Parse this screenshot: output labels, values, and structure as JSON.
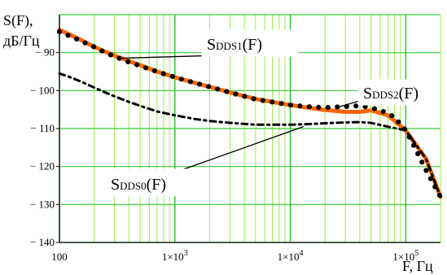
{
  "chart_data": {
    "type": "line",
    "ylabel_line1": "S(F),",
    "ylabel_line2": "дБ/Гц",
    "xlabel": "F, Гц",
    "x_scale": "log",
    "xlim": [
      100,
      200000
    ],
    "ylim": [
      -140,
      -80
    ],
    "yticks": [
      {
        "value": -90,
        "label": "− 90"
      },
      {
        "value": -100,
        "label": "− 100"
      },
      {
        "value": -110,
        "label": "− 110"
      },
      {
        "value": -120,
        "label": "− 120"
      },
      {
        "value": -130,
        "label": "− 130"
      },
      {
        "value": -140,
        "label": "− 140"
      }
    ],
    "xticks": [
      {
        "value": 100,
        "label": "100"
      },
      {
        "value": 1000,
        "label": "1×10",
        "exp": "3"
      },
      {
        "value": 10000,
        "label": "1×10",
        "exp": "4"
      },
      {
        "value": 100000,
        "label": "1×10",
        "exp": "5"
      }
    ],
    "grid": true,
    "colors": {
      "major_grid": "#33cc33",
      "minor_grid": "#99ee44",
      "dds1": "#ff6600",
      "dds2": "#000000",
      "dds0": "#000000"
    },
    "series": [
      {
        "name": "DDS1",
        "style": "solid-thick",
        "x": [
          100,
          150,
          200,
          300,
          500,
          700,
          1000,
          1500,
          2000,
          3000,
          5000,
          7000,
          10000,
          15000,
          20000,
          30000,
          40000,
          50000,
          70000,
          100000,
          150000,
          200000
        ],
        "y": [
          -84,
          -86.5,
          -88.5,
          -90.8,
          -93.3,
          -95,
          -96.5,
          -98,
          -99,
          -100.5,
          -102.2,
          -103,
          -103.8,
          -104.6,
          -105.1,
          -105.6,
          -105.6,
          -105.2,
          -106.5,
          -110.5,
          -118,
          -128
        ]
      },
      {
        "name": "DDS2",
        "style": "dots",
        "x": [
          100,
          120,
          150,
          200,
          250,
          300,
          400,
          500,
          700,
          1000,
          1500,
          2000,
          3000,
          4000,
          5000,
          7000,
          10000,
          15000,
          20000,
          30000,
          40000,
          50000,
          60000,
          70000,
          80000,
          100000,
          120000,
          150000,
          200000
        ],
        "y": [
          -84.5,
          -85.5,
          -86.8,
          -88.5,
          -90,
          -91,
          -92.5,
          -93.5,
          -95,
          -96.5,
          -98,
          -99,
          -100.5,
          -101.5,
          -102.3,
          -103,
          -103.8,
          -104.3,
          -104.5,
          -104.2,
          -104,
          -104.5,
          -105.2,
          -106,
          -107,
          -110.5,
          -115,
          -121,
          -128
        ]
      },
      {
        "name": "DDS0",
        "style": "dash-dot",
        "x": [
          100,
          120,
          150,
          200,
          250,
          300,
          400,
          500,
          700,
          1000,
          1500,
          2000,
          3000,
          5000,
          7000,
          10000,
          15000,
          20000,
          30000,
          40000,
          50000,
          70000,
          100000,
          150000,
          200000
        ],
        "y": [
          -95.5,
          -96.3,
          -97.5,
          -99.2,
          -100.5,
          -101.5,
          -103,
          -104,
          -105.5,
          -106.5,
          -107.5,
          -108,
          -108.5,
          -109,
          -109,
          -109,
          -108.8,
          -108.6,
          -108.4,
          -108.3,
          -108.5,
          -109.5,
          -110.5,
          -118,
          -128
        ]
      }
    ],
    "annotations": [
      {
        "series": "DDS1",
        "main": "S",
        "sub": "DDS1",
        "tail": "(F)",
        "anchor_x": 320,
        "anchor_y": -91.5
      },
      {
        "series": "DDS2",
        "main": "S",
        "sub": "DDS2",
        "tail": "(F)",
        "anchor_x": 25000,
        "anchor_y": -104.5
      },
      {
        "series": "DDS0",
        "main": "S",
        "sub": "DDS0",
        "tail": "(F)",
        "anchor_x": 13000,
        "anchor_y": -109.5
      }
    ]
  }
}
